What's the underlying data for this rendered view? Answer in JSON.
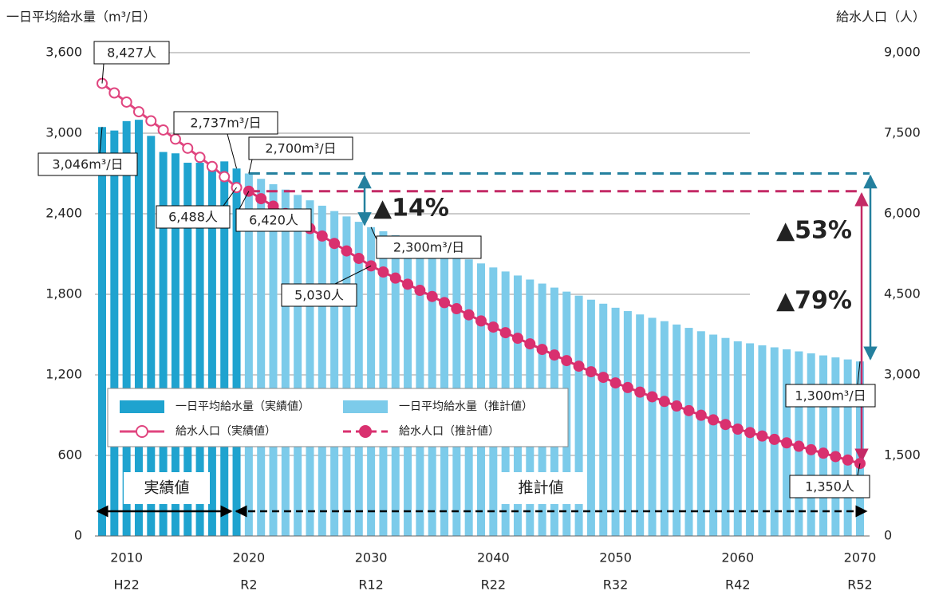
{
  "chart_data": {
    "type": "bar",
    "y_label": "一日平均給水量（m³/日）",
    "y2_label": "給水人口（人）",
    "categories": [
      null,
      null,
      "2010",
      null,
      null,
      null,
      null,
      null,
      null,
      null,
      null,
      null,
      "2020",
      null,
      null,
      null,
      null,
      null,
      null,
      null,
      null,
      null,
      "2030",
      null,
      null,
      null,
      null,
      null,
      null,
      null,
      null,
      null,
      "2040",
      null,
      null,
      null,
      null,
      null,
      null,
      null,
      null,
      null,
      "2050",
      null,
      null,
      null,
      null,
      null,
      null,
      null,
      null,
      null,
      "2060",
      null,
      null,
      null,
      null,
      null,
      null,
      null,
      null,
      null,
      "2070"
    ],
    "category_era": [
      null,
      null,
      "H22",
      null,
      null,
      null,
      null,
      null,
      null,
      null,
      null,
      null,
      "R2",
      null,
      null,
      null,
      null,
      null,
      null,
      null,
      null,
      null,
      "R12",
      null,
      null,
      null,
      null,
      null,
      null,
      null,
      null,
      null,
      "R22",
      null,
      null,
      null,
      null,
      null,
      null,
      null,
      null,
      null,
      "R32",
      null,
      null,
      null,
      null,
      null,
      null,
      null,
      null,
      null,
      "R42",
      null,
      null,
      null,
      null,
      null,
      null,
      null,
      null,
      null,
      "R52"
    ],
    "ylim": [
      0,
      3600
    ],
    "yticks": [
      0,
      600,
      {
        "value": 1200,
        "label": "1,200"
      },
      {
        "value": 1800,
        "label": "1,800"
      },
      {
        "value": 2400,
        "label": "2,400"
      },
      {
        "value": 3000,
        "label": "3,000"
      },
      {
        "value": 3600,
        "label": "3,600"
      }
    ],
    "y2lim": [
      0,
      9000
    ],
    "y2ticks": [
      0,
      {
        "value": 1500,
        "label": "1,500"
      },
      {
        "value": 3000,
        "label": "3,000"
      },
      {
        "value": 4500,
        "label": "4,500"
      },
      {
        "value": 6000,
        "label": "6,000"
      },
      {
        "value": 7500,
        "label": "7,500"
      },
      {
        "value": 9000,
        "label": "9,000"
      }
    ],
    "grid": true,
    "series": [
      {
        "name": "一日平均給水量（実績値）",
        "type": "bar",
        "color": "#1fa3cf",
        "values": [
          3046,
          3020,
          3090,
          3100,
          2980,
          2860,
          2850,
          2780,
          2780,
          2780,
          2790,
          2737,
          null,
          null,
          null,
          null,
          null,
          null,
          null,
          null,
          null,
          null,
          null,
          null,
          null,
          null,
          null,
          null,
          null,
          null,
          null,
          null,
          null,
          null,
          null,
          null,
          null,
          null,
          null,
          null,
          null,
          null,
          null,
          null,
          null,
          null,
          null,
          null,
          null,
          null,
          null,
          null,
          null,
          null,
          null,
          null,
          null,
          null,
          null,
          null,
          null,
          null,
          null
        ],
        "value_labels": [
          "3,046m³/日",
          null,
          null,
          null,
          null,
          null,
          null,
          null,
          null,
          null,
          null,
          "2,737m³/日",
          null,
          null,
          null,
          null,
          null,
          null,
          null,
          null,
          null,
          null,
          null,
          null,
          null,
          null,
          null,
          null,
          null,
          null,
          null,
          null,
          null,
          null,
          null,
          null,
          null,
          null,
          null,
          null,
          null,
          null,
          null,
          null,
          null,
          null,
          null,
          null,
          null,
          null,
          null,
          null,
          null,
          null,
          null,
          null,
          null,
          null,
          null,
          null,
          null,
          null,
          null
        ]
      },
      {
        "name": "一日平均給水量（推計値）",
        "type": "bar",
        "color": "#7ccbea",
        "values": [
          null,
          null,
          null,
          null,
          null,
          null,
          null,
          null,
          null,
          null,
          null,
          null,
          2700,
          2660,
          2620,
          2580,
          2540,
          2500,
          2460,
          2420,
          2380,
          2340,
          2300,
          2270,
          2240,
          2210,
          2180,
          2150,
          2120,
          2090,
          2060,
          2030,
          2000,
          1970,
          1940,
          1910,
          1880,
          1850,
          1820,
          1790,
          1760,
          1730,
          1700,
          1675,
          1650,
          1625,
          1600,
          1575,
          1550,
          1525,
          1500,
          1475,
          1450,
          1435,
          1420,
          1405,
          1390,
          1375,
          1360,
          1345,
          1330,
          1315,
          1300
        ],
        "value_labels": [
          null,
          null,
          null,
          null,
          null,
          null,
          null,
          null,
          null,
          null,
          null,
          null,
          "2,700m³/日",
          null,
          null,
          null,
          null,
          null,
          null,
          null,
          null,
          null,
          "2,300m³/日",
          null,
          null,
          null,
          null,
          null,
          null,
          null,
          null,
          null,
          null,
          null,
          null,
          null,
          null,
          null,
          null,
          null,
          null,
          null,
          null,
          null,
          null,
          null,
          null,
          null,
          null,
          null,
          null,
          null,
          null,
          null,
          null,
          null,
          null,
          null,
          null,
          null,
          null,
          null,
          "1,300m³/日"
        ]
      },
      {
        "name": "給水人口（実績値）",
        "type": "line",
        "axis": "y2",
        "color": "#e0457f",
        "marker": "hollow",
        "values": [
          8427,
          8250,
          8080,
          7900,
          7730,
          7560,
          7390,
          7220,
          7050,
          6880,
          6690,
          6488,
          null,
          null,
          null,
          null,
          null,
          null,
          null,
          null,
          null,
          null,
          null,
          null,
          null,
          null,
          null,
          null,
          null,
          null,
          null,
          null,
          null,
          null,
          null,
          null,
          null,
          null,
          null,
          null,
          null,
          null,
          null,
          null,
          null,
          null,
          null,
          null,
          null,
          null,
          null,
          null,
          null,
          null,
          null,
          null,
          null,
          null,
          null,
          null,
          null,
          null,
          null
        ],
        "value_labels": [
          "8,427人",
          null,
          null,
          null,
          null,
          null,
          null,
          null,
          null,
          null,
          null,
          "6,488人",
          null,
          null,
          null,
          null,
          null,
          null,
          null,
          null,
          null,
          null,
          null,
          null,
          null,
          null,
          null,
          null,
          null,
          null,
          null,
          null,
          null,
          null,
          null,
          null,
          null,
          null,
          null,
          null,
          null,
          null,
          null,
          null,
          null,
          null,
          null,
          null,
          null,
          null,
          null,
          null,
          null,
          null,
          null,
          null,
          null,
          null,
          null,
          null,
          null,
          null,
          null
        ]
      },
      {
        "name": "給水人口（推計値）",
        "type": "line",
        "axis": "y2",
        "color": "#d9306f",
        "marker": "filled",
        "dashed": true,
        "values": [
          null,
          null,
          null,
          null,
          null,
          null,
          null,
          null,
          null,
          null,
          null,
          null,
          6420,
          6281,
          6142,
          6003,
          5864,
          5725,
          5586,
          5447,
          5308,
          5169,
          5030,
          4916,
          4802,
          4688,
          4574,
          4460,
          4346,
          4232,
          4118,
          4004,
          3890,
          3786,
          3682,
          3578,
          3474,
          3370,
          3266,
          3162,
          3058,
          2954,
          2850,
          2764,
          2678,
          2592,
          2506,
          2420,
          2334,
          2248,
          2162,
          2076,
          1990,
          1926,
          1862,
          1798,
          1734,
          1670,
          1606,
          1542,
          1478,
          1414,
          1350
        ],
        "value_labels": [
          null,
          null,
          null,
          null,
          null,
          null,
          null,
          null,
          null,
          null,
          null,
          null,
          "6,420人",
          null,
          null,
          null,
          null,
          null,
          null,
          null,
          null,
          null,
          "5,030人",
          null,
          null,
          null,
          null,
          null,
          null,
          null,
          null,
          null,
          null,
          null,
          null,
          null,
          null,
          null,
          null,
          null,
          null,
          null,
          null,
          null,
          null,
          null,
          null,
          null,
          null,
          null,
          null,
          null,
          null,
          null,
          null,
          null,
          null,
          null,
          null,
          null,
          null,
          null,
          "1,350人"
        ]
      }
    ],
    "period_labels": [
      "実績値",
      "推計値"
    ],
    "annotations": [
      "▲14%",
      "▲53%",
      "▲79%"
    ]
  }
}
